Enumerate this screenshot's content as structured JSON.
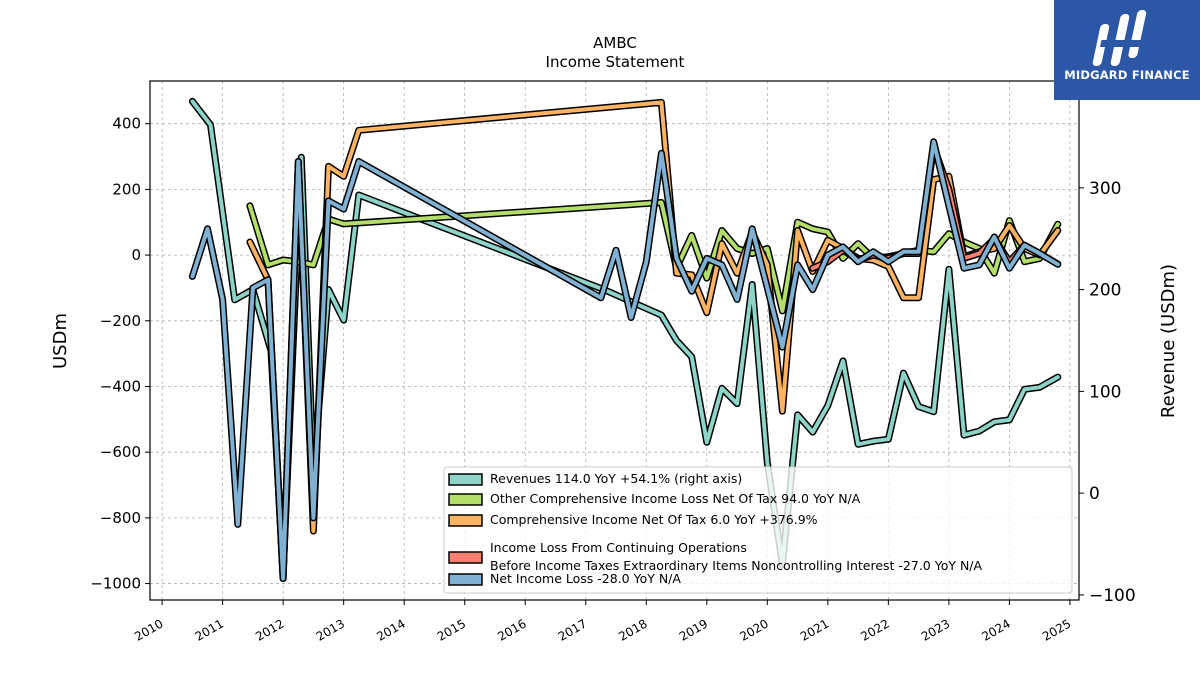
{
  "chart_data": {
    "type": "line",
    "title": "AMBC",
    "subtitle": "Income Statement",
    "ylabel": "USDm",
    "y2label": "Revenue (USDm)",
    "ylim": [
      -1050,
      530
    ],
    "y2lim": [
      -105,
      405
    ],
    "yticks": [
      -1000,
      -800,
      -600,
      -400,
      -200,
      0,
      200,
      400
    ],
    "y2ticks": [
      -100,
      0,
      100,
      200,
      300
    ],
    "xlim": [
      2009.8,
      2025.15
    ],
    "xticks": [
      2010,
      2011,
      2012,
      2013,
      2014,
      2015,
      2016,
      2017,
      2018,
      2019,
      2020,
      2021,
      2022,
      2023,
      2024,
      2025
    ],
    "grid": true,
    "legend_position": "lower-right",
    "series": [
      {
        "name": "Revenues  114.0 YoY +54.1% (right axis)",
        "color": "#8dd3c7",
        "axis": "right",
        "x": [
          2010.5,
          2010.8,
          2011.2,
          2011.5,
          2011.8,
          2012.0,
          2012.3,
          2012.5,
          2012.75,
          2013.0,
          2013.25,
          2017.3,
          2018.25,
          2018.5,
          2018.75,
          2019.0,
          2019.25,
          2019.5,
          2019.75,
          2020.0,
          2020.25,
          2020.5,
          2020.75,
          2021.0,
          2021.25,
          2021.5,
          2021.75,
          2022.0,
          2022.25,
          2022.5,
          2022.75,
          2023.0,
          2023.25,
          2023.5,
          2023.75,
          2024.0,
          2024.25,
          2024.5,
          2024.8
        ],
        "values": [
          385,
          362,
          190,
          200,
          140,
          -80,
          330,
          20,
          200,
          170,
          293,
          200,
          175,
          150,
          134,
          50,
          103,
          88,
          205,
          30,
          -70,
          77,
          60,
          86,
          130,
          48,
          51,
          53,
          118,
          85,
          80,
          220,
          57,
          61,
          70,
          72,
          102,
          104,
          114
        ]
      },
      {
        "name": "Other Comprehensive Income Loss Net Of Tax  94.0 YoY N/A",
        "color": "#b3de69",
        "axis": "left",
        "x": [
          2011.45,
          2011.75,
          2012.0,
          2012.25,
          2012.5,
          2012.75,
          2013.0,
          2018.25,
          2018.5,
          2018.75,
          2019.0,
          2019.25,
          2019.5,
          2019.75,
          2020.0,
          2020.25,
          2020.5,
          2020.75,
          2021.0,
          2021.25,
          2021.5,
          2021.75,
          2022.0,
          2022.25,
          2022.5,
          2022.75,
          2023.0,
          2023.25,
          2023.5,
          2023.75,
          2024.0,
          2024.25,
          2024.5,
          2024.8
        ],
        "values": [
          150,
          -30,
          -15,
          -20,
          -30,
          110,
          95,
          160,
          -40,
          60,
          -70,
          75,
          20,
          5,
          20,
          -170,
          100,
          80,
          70,
          -10,
          35,
          -10,
          -5,
          5,
          15,
          10,
          65,
          40,
          20,
          -55,
          105,
          -20,
          -10,
          94
        ]
      },
      {
        "name": "Comprehensive Income Net Of Tax  6.0 YoY +376.9%",
        "color": "#fdb462",
        "axis": "left",
        "x": [
          2011.45,
          2011.75,
          2012.0,
          2012.25,
          2012.5,
          2012.75,
          2013.0,
          2013.25,
          2018.25,
          2018.5,
          2018.75,
          2019.0,
          2019.25,
          2019.5,
          2019.75,
          2020.0,
          2020.25,
          2020.5,
          2020.75,
          2021.0,
          2021.25,
          2021.5,
          2021.75,
          2022.0,
          2022.25,
          2022.5,
          2022.75,
          2023.0,
          2023.25,
          2023.5,
          2023.75,
          2024.0,
          2024.25,
          2024.5,
          2024.8
        ],
        "values": [
          40,
          -75,
          -985,
          285,
          -840,
          270,
          240,
          380,
          465,
          -55,
          -60,
          -175,
          35,
          -55,
          70,
          -30,
          -475,
          75,
          -50,
          45,
          20,
          -10,
          -15,
          -35,
          -130,
          -130,
          230,
          240,
          -5,
          10,
          20,
          90,
          20,
          0,
          75
        ]
      },
      {
        "name": "Income Loss From Continuing Operations\nBefore Income Taxes Extraordinary Items Noncontrolling Interest  -27.0 YoY N/A",
        "color": "#fb8072",
        "axis": "left",
        "x": [
          2020.75,
          2021.0,
          2021.25,
          2021.5,
          2021.75,
          2022.0,
          2022.25,
          2022.5,
          2022.75,
          2023.0,
          2023.25,
          2023.5,
          2023.75,
          2024.0,
          2024.25,
          2024.5,
          2024.8
        ],
        "values": [
          -40,
          -20,
          15,
          -15,
          0,
          -10,
          5,
          5,
          330,
          200,
          -10,
          5,
          50,
          -20,
          30,
          5,
          -27
        ]
      },
      {
        "name": "Net Income Loss  -28.0 YoY N/A",
        "color": "#80b1d3",
        "axis": "left",
        "x": [
          2010.5,
          2010.75,
          2011.0,
          2011.25,
          2011.5,
          2011.75,
          2012.0,
          2012.25,
          2012.5,
          2012.75,
          2013.0,
          2013.25,
          2017.25,
          2017.5,
          2017.75,
          2018.0,
          2018.25,
          2018.5,
          2018.75,
          2019.0,
          2019.25,
          2019.5,
          2019.75,
          2020.0,
          2020.25,
          2020.5,
          2020.75,
          2021.0,
          2021.25,
          2021.5,
          2021.75,
          2022.0,
          2022.25,
          2022.5,
          2022.75,
          2023.0,
          2023.25,
          2023.5,
          2023.75,
          2024.0,
          2024.25,
          2024.5,
          2024.8
        ],
        "values": [
          -65,
          80,
          -135,
          -820,
          -100,
          -75,
          -985,
          285,
          -800,
          165,
          140,
          285,
          -130,
          15,
          -190,
          -20,
          310,
          -10,
          -110,
          -10,
          -30,
          -135,
          80,
          -100,
          -280,
          -30,
          -105,
          0,
          25,
          -20,
          10,
          -20,
          10,
          10,
          345,
          150,
          -40,
          -30,
          55,
          -40,
          30,
          5,
          -28
        ]
      }
    ]
  },
  "branding": {
    "logo_text": "MIDGARD FINANCE"
  }
}
